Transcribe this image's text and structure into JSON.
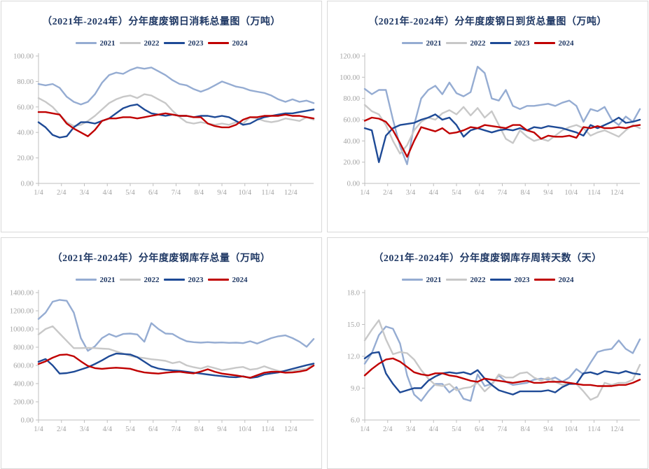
{
  "colors": {
    "y2021": "#95ACD2",
    "y2022": "#C8C8C8",
    "y2023": "#1E4A96",
    "y2024": "#C00000",
    "title_text": "#1F3864",
    "axis_text": "#A3A3A3",
    "axis_line": "#BFBFBF",
    "panel_border": "#D9D9D9",
    "background": "#FFFFFF"
  },
  "x_labels": [
    "1/4",
    "2/4",
    "3/4",
    "4/4",
    "5/4",
    "6/4",
    "7/4",
    "8/4",
    "9/4",
    "10/4",
    "11/4",
    "12/4"
  ],
  "chart_data": [
    {
      "type": "line",
      "title": "（2021年-2024年）分年度废钢日消耗总量图（万吨）",
      "xlabel": "",
      "ylabel": "",
      "ylim": [
        0,
        100
      ],
      "ytick_step": 20,
      "ytick_decimals": 2,
      "x_range": [
        1,
        13
      ],
      "grid": false,
      "legend_position": "top",
      "categories": [
        "1/4",
        "2/4",
        "3/4",
        "4/4",
        "5/4",
        "6/4",
        "7/4",
        "8/4",
        "9/4",
        "10/4",
        "11/4",
        "12/4"
      ],
      "series": [
        {
          "name": "2021",
          "color": "#95ACD2",
          "values": [
            78,
            77,
            78,
            75,
            68,
            64,
            62,
            64,
            70,
            79,
            85,
            87,
            86,
            89,
            91,
            90,
            91,
            88,
            85,
            81,
            78,
            77,
            74,
            72,
            74,
            77,
            80,
            78,
            76,
            75,
            73,
            72,
            71,
            69,
            66,
            64,
            66,
            64,
            65,
            63
          ]
        },
        {
          "name": "2022",
          "color": "#C8C8C8",
          "values": [
            67,
            64,
            60,
            54,
            48,
            45,
            46,
            49,
            53,
            58,
            63,
            66,
            68,
            69,
            67,
            70,
            69,
            66,
            63,
            57,
            52,
            48,
            47,
            48,
            47,
            46,
            47,
            46,
            48,
            47,
            52,
            51,
            49,
            48,
            49,
            51,
            50,
            49,
            52,
            50
          ]
        },
        {
          "name": "2023",
          "color": "#1E4A96",
          "values": [
            48,
            44,
            38,
            36,
            37,
            44,
            48,
            48,
            47,
            49,
            51,
            55,
            59,
            61,
            62,
            58,
            55,
            54,
            53,
            54,
            53,
            53,
            52,
            53,
            53,
            52,
            53,
            52,
            49,
            46,
            47,
            50,
            52,
            53,
            54,
            55,
            55,
            56,
            57,
            58
          ]
        },
        {
          "name": "2024",
          "color": "#C00000",
          "values": [
            56,
            56,
            55,
            54,
            47,
            43,
            40,
            37,
            42,
            49,
            51,
            51,
            52,
            52,
            51,
            52,
            53,
            54,
            55,
            54,
            53,
            53,
            52,
            52,
            47,
            45,
            44,
            44,
            46,
            50,
            52,
            52,
            53,
            53,
            53,
            54,
            53,
            53,
            52,
            51
          ]
        }
      ]
    },
    {
      "type": "line",
      "title": "（2021年-2024年）分年度废钢日到货总量图（万吨）",
      "xlabel": "",
      "ylabel": "",
      "ylim": [
        0,
        120
      ],
      "ytick_step": 20,
      "ytick_decimals": 2,
      "x_range": [
        1,
        13
      ],
      "grid": false,
      "legend_position": "top",
      "categories": [
        "1/4",
        "2/4",
        "3/4",
        "4/4",
        "5/4",
        "6/4",
        "7/4",
        "8/4",
        "9/4",
        "10/4",
        "11/4",
        "12/4"
      ],
      "series": [
        {
          "name": "2021",
          "color": "#95ACD2",
          "values": [
            89,
            84,
            88,
            88,
            60,
            35,
            18,
            55,
            80,
            88,
            92,
            84,
            95,
            85,
            82,
            86,
            110,
            104,
            80,
            78,
            88,
            73,
            70,
            73,
            73,
            74,
            75,
            73,
            76,
            78,
            73,
            58,
            70,
            68,
            72,
            60,
            55,
            63,
            58,
            70
          ]
        },
        {
          "name": "2022",
          "color": "#C8C8C8",
          "values": [
            74,
            68,
            65,
            55,
            40,
            28,
            36,
            50,
            58,
            62,
            60,
            66,
            69,
            65,
            72,
            64,
            71,
            62,
            68,
            55,
            42,
            38,
            50,
            44,
            40,
            42,
            40,
            45,
            50,
            53,
            55,
            52,
            45,
            48,
            50,
            47,
            44,
            50,
            55,
            52
          ]
        },
        {
          "name": "2023",
          "color": "#1E4A96",
          "values": [
            52,
            50,
            20,
            45,
            52,
            55,
            56,
            57,
            60,
            62,
            65,
            60,
            62,
            55,
            44,
            50,
            52,
            50,
            48,
            50,
            51,
            50,
            52,
            50,
            53,
            52,
            54,
            53,
            52,
            50,
            48,
            45,
            55,
            52,
            55,
            58,
            62,
            57,
            58,
            60
          ]
        },
        {
          "name": "2024",
          "color": "#C00000",
          "values": [
            59,
            62,
            61,
            58,
            50,
            38,
            25,
            40,
            53,
            51,
            49,
            52,
            47,
            48,
            50,
            53,
            52,
            55,
            54,
            53,
            52,
            55,
            55,
            50,
            48,
            42,
            45,
            44,
            44,
            45,
            43,
            53,
            52,
            54,
            52,
            52,
            53,
            52,
            54,
            55
          ]
        }
      ]
    },
    {
      "type": "line",
      "title": "（2021年-2024年）分年度废钢库存总量（万吨）",
      "xlabel": "",
      "ylabel": "",
      "ylim": [
        0,
        1400
      ],
      "ytick_step": 200,
      "ytick_decimals": 2,
      "x_range": [
        1,
        13
      ],
      "grid": false,
      "legend_position": "top",
      "categories": [
        "1/4",
        "2/4",
        "3/4",
        "4/4",
        "5/4",
        "6/4",
        "7/4",
        "8/4",
        "9/4",
        "10/4",
        "11/4",
        "12/4"
      ],
      "series": [
        {
          "name": "2021",
          "color": "#95ACD2",
          "values": [
            1110,
            1180,
            1300,
            1320,
            1310,
            1180,
            900,
            760,
            810,
            900,
            945,
            915,
            945,
            950,
            940,
            860,
            1065,
            1000,
            950,
            945,
            900,
            865,
            855,
            850,
            855,
            850,
            852,
            848,
            850,
            845,
            865,
            840,
            870,
            900,
            920,
            930,
            900,
            860,
            805,
            890
          ]
        },
        {
          "name": "2022",
          "color": "#C8C8C8",
          "values": [
            940,
            1000,
            1030,
            950,
            870,
            790,
            790,
            793,
            790,
            785,
            780,
            755,
            730,
            705,
            690,
            680,
            668,
            660,
            650,
            625,
            640,
            600,
            580,
            565,
            590,
            570,
            548,
            560,
            575,
            583,
            553,
            563,
            590,
            562,
            540,
            532,
            540,
            552,
            562,
            610
          ]
        },
        {
          "name": "2023",
          "color": "#1E4A96",
          "values": [
            640,
            670,
            600,
            510,
            515,
            530,
            555,
            580,
            615,
            655,
            700,
            730,
            725,
            720,
            690,
            640,
            590,
            565,
            552,
            545,
            540,
            530,
            520,
            510,
            500,
            490,
            482,
            472,
            470,
            480,
            462,
            472,
            500,
            512,
            522,
            542,
            562,
            582,
            602,
            620
          ]
        },
        {
          "name": "2024",
          "color": "#C00000",
          "values": [
            615,
            645,
            685,
            715,
            720,
            700,
            645,
            595,
            570,
            562,
            570,
            575,
            570,
            563,
            540,
            522,
            515,
            510,
            520,
            527,
            530,
            520,
            512,
            532,
            558,
            530,
            510,
            500,
            490,
            478,
            465,
            492,
            520,
            530,
            530,
            520,
            522,
            532,
            548,
            598
          ]
        }
      ]
    },
    {
      "type": "line",
      "title": "（2021年-2024年）分年度废钢库存周转天数（天）",
      "xlabel": "",
      "ylabel": "",
      "ylim": [
        6,
        18
      ],
      "ytick_step": 3,
      "ytick_decimals": 1,
      "x_range": [
        1,
        13
      ],
      "grid": false,
      "legend_position": "top",
      "categories": [
        "1/4",
        "2/4",
        "3/4",
        "4/4",
        "5/4",
        "6/4",
        "7/4",
        "8/4",
        "9/4",
        "10/4",
        "11/4",
        "12/4"
      ],
      "series": [
        {
          "name": "2021",
          "color": "#95ACD2",
          "values": [
            11.3,
            12.3,
            14.0,
            14.8,
            14.6,
            13.2,
            10.2,
            8.4,
            7.8,
            8.7,
            9.4,
            9.4,
            8.6,
            9.1,
            8.0,
            7.8,
            10.3,
            9.2,
            9.4,
            10.2,
            9.6,
            9.3,
            9.4,
            9.5,
            9.8,
            9.9,
            9.8,
            10.0,
            9.6,
            10.0,
            10.8,
            10.3,
            11.4,
            12.4,
            12.6,
            12.7,
            13.5,
            12.7,
            12.3,
            13.6
          ]
        },
        {
          "name": "2022",
          "color": "#C8C8C8",
          "values": [
            13.5,
            14.5,
            15.4,
            13.6,
            12.2,
            12.4,
            12.3,
            11.7,
            10.7,
            9.9,
            9.3,
            9.2,
            9.4,
            8.8,
            9.0,
            9.1,
            9.5,
            8.7,
            9.3,
            10.3,
            10.0,
            10.0,
            10.4,
            10.5,
            10.0,
            9.7,
            10.0,
            9.6,
            9.3,
            9.5,
            9.4,
            8.7,
            7.9,
            8.2,
            9.5,
            9.3,
            9.5,
            9.5,
            9.8,
            11.2
          ]
        },
        {
          "name": "2023",
          "color": "#1E4A96",
          "values": [
            11.8,
            12.3,
            12.4,
            10.4,
            9.4,
            8.6,
            8.8,
            9.0,
            9.0,
            9.7,
            10.1,
            10.4,
            10.5,
            10.4,
            10.5,
            10.3,
            10.7,
            9.9,
            9.3,
            8.8,
            8.6,
            8.4,
            8.7,
            8.7,
            8.7,
            8.7,
            8.8,
            8.6,
            9.1,
            9.4,
            9.4,
            10.4,
            10.5,
            10.3,
            10.6,
            10.5,
            10.4,
            10.6,
            10.4,
            10.3
          ]
        },
        {
          "name": "2024",
          "color": "#C00000",
          "values": [
            10.2,
            10.8,
            11.3,
            11.7,
            11.8,
            11.5,
            11.0,
            10.5,
            10.3,
            10.2,
            10.4,
            10.4,
            10.2,
            10.1,
            9.9,
            9.7,
            9.6,
            9.9,
            9.8,
            9.7,
            9.6,
            9.5,
            9.6,
            9.7,
            9.5,
            9.5,
            9.6,
            9.6,
            9.6,
            9.5,
            9.4,
            9.3,
            9.3,
            9.2,
            9.2,
            9.2,
            9.3,
            9.3,
            9.5,
            9.8
          ]
        }
      ]
    }
  ]
}
